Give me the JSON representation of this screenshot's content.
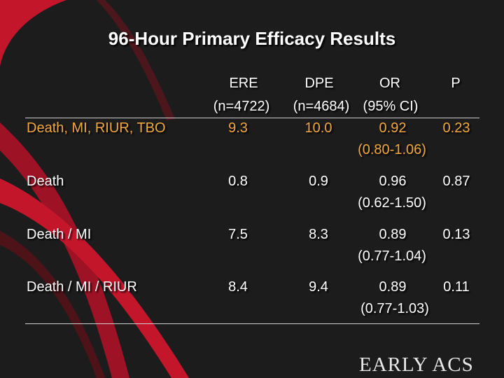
{
  "title": "96-Hour Primary Efficacy Results",
  "header": {
    "ere": "ERE",
    "ere_n": "(n=4722)",
    "dpe": "DPE",
    "dpe_n": "(n=4684)",
    "or": "OR",
    "or_ci": "(95% CI)",
    "p": "P"
  },
  "rows": [
    {
      "label": "Death, MI, RIUR, TBO",
      "ere": "9.3",
      "dpe": "10.0",
      "or": "0.92",
      "ci": "(0.80-1.06)",
      "p": "0.23"
    },
    {
      "label": "Death",
      "ere": "0.8",
      "dpe": "0.9",
      "or": "0.96",
      "ci": "(0.62-1.50)",
      "p": "0.87"
    },
    {
      "label": "Death / MI",
      "ere": "7.5",
      "dpe": "8.3",
      "or": "0.89",
      "ci": "(0.77-1.04)",
      "p": "0.13"
    },
    {
      "label": "Death / MI / RIUR",
      "ere": "8.4",
      "dpe": "9.4",
      "or": "0.89",
      "ci": "(0.77-1.03)",
      "p": "0.11"
    }
  ],
  "logo": "EARLY ACS",
  "colors": {
    "background": "#1c1c1c",
    "accent_red": "#c4162b",
    "highlight": "#f0a83c"
  }
}
